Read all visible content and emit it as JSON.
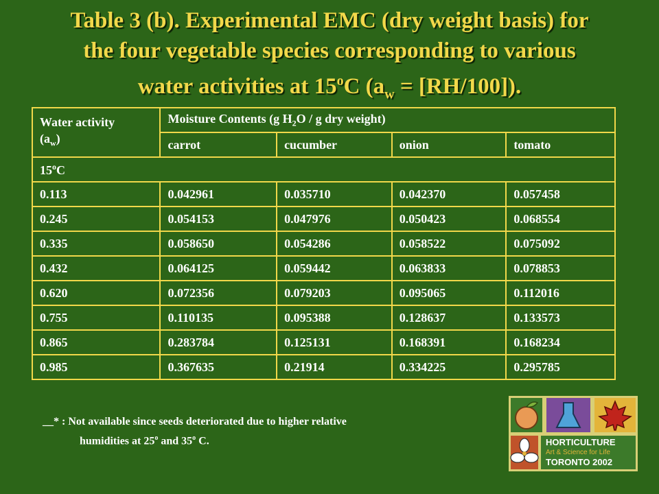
{
  "title": {
    "line1": "Table 3 (b). Experimental EMC (dry weight basis) for",
    "line2": "the four vegetable species corresponding to various",
    "line3_pre": "water activities at 15",
    "line3_sup": "o",
    "line3_mid": "C (a",
    "line3_sub": "w",
    "line3_post": " = [RH/100])."
  },
  "table": {
    "header_water_pre": "Water activity",
    "header_water_a": "(a",
    "header_water_sub": "w",
    "header_water_close": ")",
    "header_mc_pre": "Moisture Contents (g H",
    "header_mc_sub": "2",
    "header_mc_post": "O / g dry weight)",
    "columns": [
      "carrot",
      "cucumber",
      "onion",
      "tomato"
    ],
    "group_pre": "15",
    "group_sup": "o",
    "group_post": "C",
    "rows": [
      [
        "0.113",
        "0.042961",
        "0.035710",
        "0.042370",
        "0.057458"
      ],
      [
        "0.245",
        "0.054153",
        "0.047976",
        "0.050423",
        "0.068554"
      ],
      [
        "0.335",
        "0.058650",
        "0.054286",
        "0.058522",
        "0.075092"
      ],
      [
        "0.432",
        "0.064125",
        "0.059442",
        "0.063833",
        "0.078853"
      ],
      [
        "0.620",
        "0.072356",
        "0.079203",
        "0.095065",
        "0.112016"
      ],
      [
        "0.755",
        "0.110135",
        "0.095388",
        "0.128637",
        "0.133573"
      ],
      [
        "0.865",
        "0.283784",
        "0.125131",
        "0.168391",
        "0.168234"
      ],
      [
        "0.985",
        "0.367635",
        "0.21914",
        "0.334225",
        "0.295785"
      ]
    ]
  },
  "footnote": {
    "line1": "__* : Not available since seeds deteriorated due to higher relative",
    "line2_pre": "humidities at 25",
    "line2_sup1": "o",
    "line2_mid": " and 35",
    "line2_sup2": "o",
    "line2_post": " C."
  },
  "logo": {
    "line1": "HORTICULTURE",
    "line2": "Art & Science for Life",
    "line3": "TORONTO 2002"
  },
  "colors": {
    "background": "#2c6518",
    "title": "#f2d84a",
    "table_border": "#f2d84a",
    "text": "#ffffff"
  }
}
